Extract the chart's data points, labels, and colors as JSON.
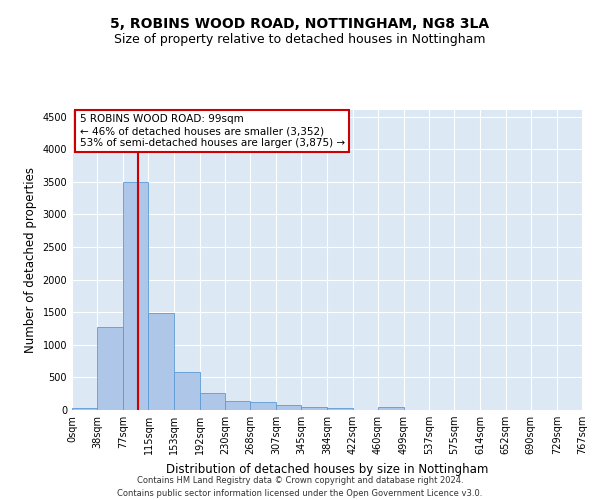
{
  "title": "5, ROBINS WOOD ROAD, NOTTINGHAM, NG8 3LA",
  "subtitle": "Size of property relative to detached houses in Nottingham",
  "xlabel": "Distribution of detached houses by size in Nottingham",
  "ylabel": "Number of detached properties",
  "bin_edges": [
    0,
    38,
    77,
    115,
    153,
    192,
    230,
    268,
    307,
    345,
    384,
    422,
    460,
    499,
    537,
    575,
    614,
    652,
    690,
    729,
    767
  ],
  "bar_heights": [
    30,
    1270,
    3500,
    1480,
    580,
    255,
    140,
    125,
    75,
    45,
    30,
    5,
    50,
    5,
    0,
    0,
    0,
    0,
    0,
    0
  ],
  "bar_color": "#aec6e8",
  "bar_edge_color": "#5b9bd5",
  "property_size": 99,
  "vline_color": "#cc0000",
  "annotation_line1": "5 ROBINS WOOD ROAD: 99sqm",
  "annotation_line2": "← 46% of detached houses are smaller (3,352)",
  "annotation_line3": "53% of semi-detached houses are larger (3,875) →",
  "annotation_box_color": "#ffffff",
  "annotation_box_edge": "#cc0000",
  "ylim": [
    0,
    4600
  ],
  "yticks": [
    0,
    500,
    1000,
    1500,
    2000,
    2500,
    3000,
    3500,
    4000,
    4500
  ],
  "background_color": "#dce9f5",
  "footer_line1": "Contains HM Land Registry data © Crown copyright and database right 2024.",
  "footer_line2": "Contains public sector information licensed under the Open Government Licence v3.0.",
  "title_fontsize": 10,
  "subtitle_fontsize": 9,
  "tick_label_fontsize": 7,
  "ylabel_fontsize": 8.5,
  "xlabel_fontsize": 8.5,
  "annotation_fontsize": 7.5,
  "footer_fontsize": 6
}
